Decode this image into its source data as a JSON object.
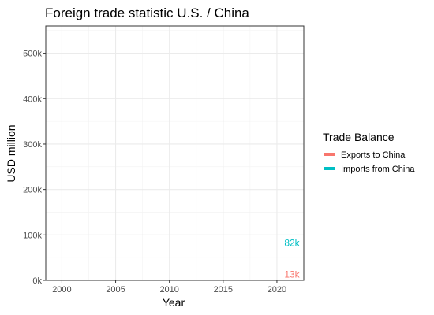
{
  "chart_data": {
    "type": "line",
    "title": "Foreign trade statistic U.S. / China",
    "xlabel": "Year",
    "ylabel": "USD million",
    "xlim": [
      1998.5,
      2022.5
    ],
    "ylim": [
      0,
      560000
    ],
    "x_ticks": [
      2000,
      2005,
      2010,
      2015,
      2020
    ],
    "y_ticks": [
      0,
      100000,
      200000,
      300000,
      400000,
      500000
    ],
    "y_tick_labels": [
      "0k",
      "100k",
      "200k",
      "300k",
      "400k",
      "500k"
    ],
    "grid": true,
    "legend": {
      "title": "Trade Balance",
      "placement": "right"
    },
    "series": [
      {
        "name": "Exports to China",
        "color": "#F8766D",
        "points": [],
        "end_label": {
          "x": 2021.4,
          "y": 13000,
          "text": "13k"
        }
      },
      {
        "name": "Imports from China",
        "color": "#00BFC4",
        "points": [],
        "end_label": {
          "x": 2021.4,
          "y": 82000,
          "text": "82k"
        }
      }
    ]
  }
}
